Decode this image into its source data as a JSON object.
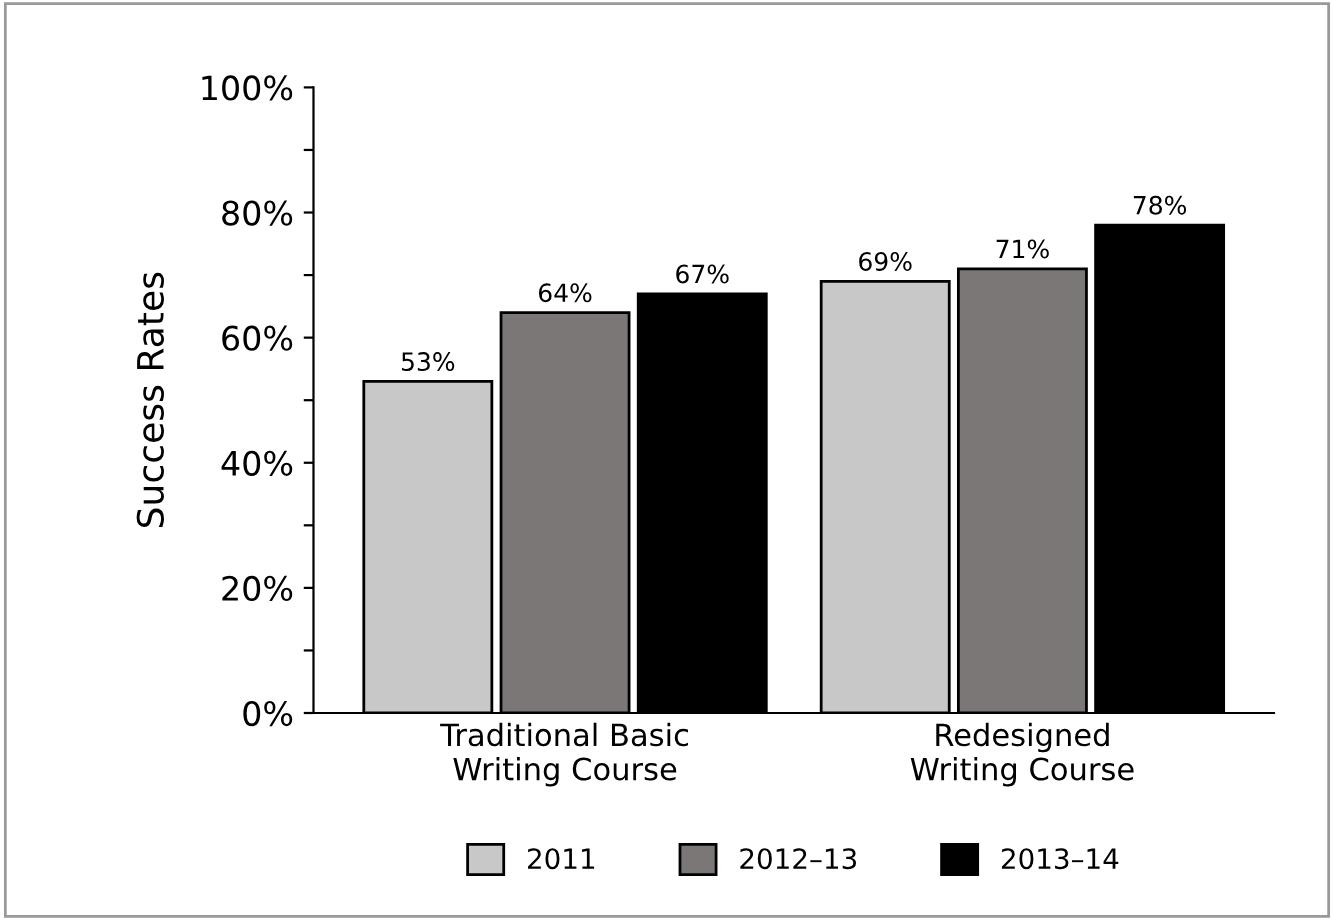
{
  "chart_data": {
    "type": "bar",
    "ylabel": "Success Rates",
    "categories": [
      "Traditional Basic\nWriting Course",
      "Redesigned\nWriting Course"
    ],
    "series": [
      {
        "name": "2011",
        "color": "#c8c8c8",
        "values": [
          53,
          69
        ],
        "value_labels": [
          "53%",
          "69%"
        ]
      },
      {
        "name": "2012–13",
        "color": "#7b7777",
        "values": [
          64,
          71
        ],
        "value_labels": [
          "64%",
          "71%"
        ]
      },
      {
        "name": "2013–14",
        "color": "#000000",
        "values": [
          67,
          78
        ],
        "value_labels": [
          "67%",
          "78%"
        ]
      }
    ],
    "ylim": [
      0,
      100
    ],
    "yticks": [
      {
        "value": 0,
        "label": "0%"
      },
      {
        "value": 10,
        "label": null
      },
      {
        "value": 20,
        "label": "20%"
      },
      {
        "value": 30,
        "label": null
      },
      {
        "value": 40,
        "label": "40%"
      },
      {
        "value": 50,
        "label": null
      },
      {
        "value": 60,
        "label": "60%"
      },
      {
        "value": 70,
        "label": null
      },
      {
        "value": 80,
        "label": "80%"
      },
      {
        "value": 90,
        "label": null
      },
      {
        "value": 100,
        "label": "100%"
      }
    ],
    "grid": false,
    "legend": "bottom"
  }
}
